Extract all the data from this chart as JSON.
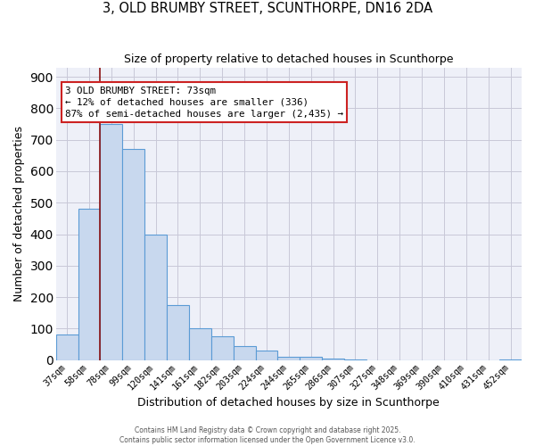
{
  "title": "3, OLD BRUMBY STREET, SCUNTHORPE, DN16 2DA",
  "subtitle": "Size of property relative to detached houses in Scunthorpe",
  "xlabel": "Distribution of detached houses by size in Scunthorpe",
  "ylabel": "Number of detached properties",
  "bar_labels": [
    "37sqm",
    "58sqm",
    "78sqm",
    "99sqm",
    "120sqm",
    "141sqm",
    "161sqm",
    "182sqm",
    "203sqm",
    "224sqm",
    "244sqm",
    "265sqm",
    "286sqm",
    "307sqm",
    "327sqm",
    "348sqm",
    "369sqm",
    "390sqm",
    "410sqm",
    "431sqm",
    "452sqm"
  ],
  "bar_values": [
    80,
    480,
    750,
    670,
    400,
    175,
    100,
    75,
    45,
    30,
    10,
    10,
    5,
    3,
    0,
    0,
    0,
    0,
    0,
    0,
    3
  ],
  "bar_color": "#c8d8ee",
  "bar_edge_color": "#5b9bd5",
  "grid_color": "#c8c8d8",
  "background_color": "#eef0f8",
  "vline_x_idx": 2,
  "vline_color": "#8b1010",
  "annotation_text_line1": "3 OLD BRUMBY STREET: 73sqm",
  "annotation_text_line2": "← 12% of detached houses are smaller (336)",
  "annotation_text_line3": "87% of semi-detached houses are larger (2,435) →",
  "ylim": [
    0,
    930
  ],
  "yticks": [
    0,
    100,
    200,
    300,
    400,
    500,
    600,
    700,
    800,
    900
  ],
  "footer_line1": "Contains HM Land Registry data © Crown copyright and database right 2025.",
  "footer_line2": "Contains public sector information licensed under the Open Government Licence v3.0."
}
